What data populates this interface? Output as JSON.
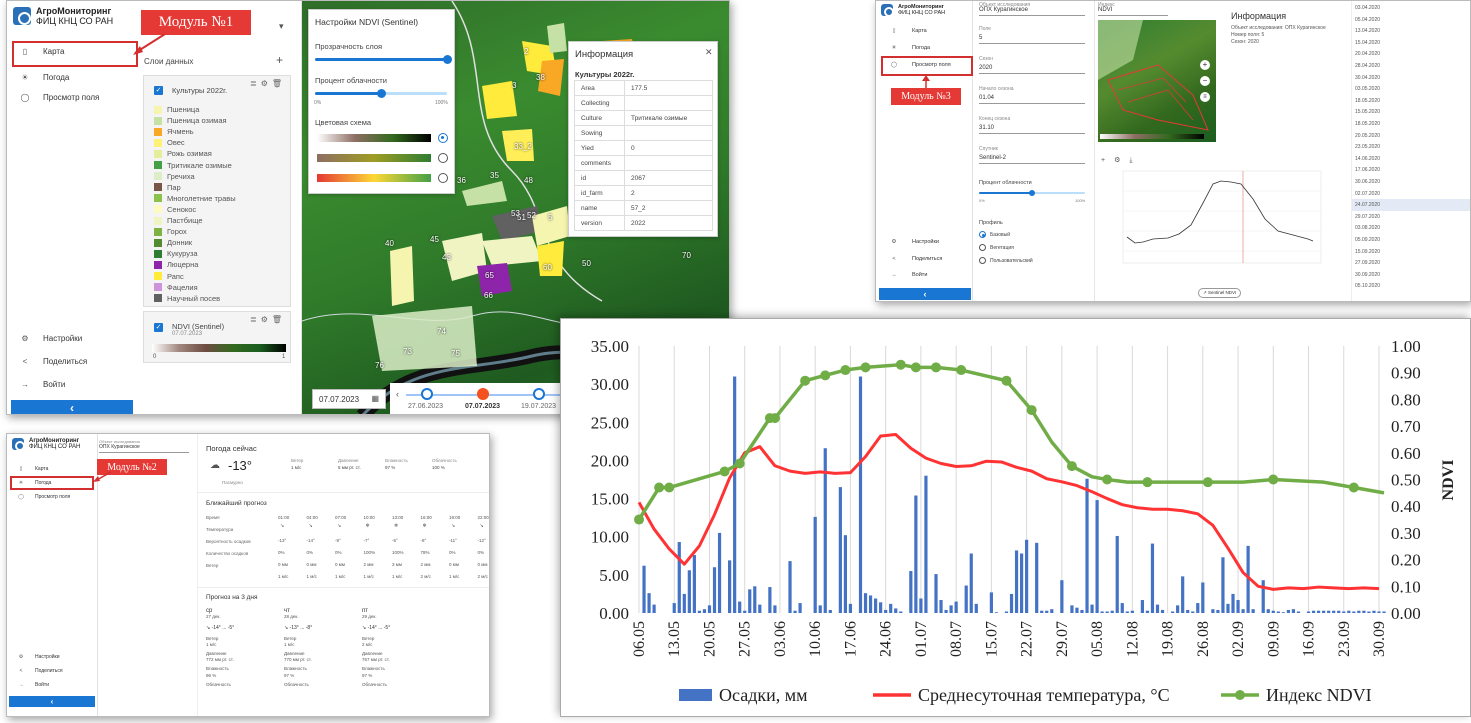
{
  "app": {
    "logo_line1": "АгроМониторинг",
    "logo_line2": "ФИЦ КНЦ СО РАН",
    "nav": [
      "Карта",
      "Погода",
      "Просмотр поля"
    ],
    "bottom_nav": [
      "Настройки",
      "Поделиться",
      "Войти"
    ],
    "collapse_glyph": "‹"
  },
  "module_labels": [
    "Модуль №1",
    "Модуль №2",
    "Модуль №3"
  ],
  "screen1": {
    "layers_title": "Слои данных",
    "add_glyph": "+",
    "layer1_name": "Культуры 2022г.",
    "crops": [
      {
        "name": "Пшеница",
        "color": "#f5f5b0"
      },
      {
        "name": "Пшеница озимая",
        "color": "#c5e1a5"
      },
      {
        "name": "Ячмень",
        "color": "#f9a825"
      },
      {
        "name": "Овес",
        "color": "#fff176"
      },
      {
        "name": "Рожь озимая",
        "color": "#e6ee9c"
      },
      {
        "name": "Тритикале озимые",
        "color": "#43a047"
      },
      {
        "name": "Гречиха",
        "color": "#dcedc8"
      },
      {
        "name": "Пар",
        "color": "#795548"
      },
      {
        "name": "Многолетние травы",
        "color": "#8bc34a"
      },
      {
        "name": "Сенокос",
        "color": "#fff9c4"
      },
      {
        "name": "Пастбище",
        "color": "#f0f4c3"
      },
      {
        "name": "Горох",
        "color": "#7cb342"
      },
      {
        "name": "Донник",
        "color": "#558b2f"
      },
      {
        "name": "Кукуруза",
        "color": "#2e7d32"
      },
      {
        "name": "Люцерна",
        "color": "#8e24aa"
      },
      {
        "name": "Рапс",
        "color": "#ffeb3b"
      },
      {
        "name": "Фацелия",
        "color": "#ce93d8"
      },
      {
        "name": "Научный посев",
        "color": "#616161"
      }
    ],
    "layer2_name": "NDVI (Sentinel)",
    "layer2_date": "07.07.2023",
    "ndvi_min": "0",
    "ndvi_max": "1",
    "ndvi_panel": {
      "title": "Настройки NDVI (Sentinel)",
      "opacity_label": "Прозрачность слоя",
      "opacity_value": 1.0,
      "cloud_label": "Процент облачности",
      "cloud_value": 0.5,
      "cloud_min": "0%",
      "cloud_max": "100%",
      "scheme_label": "Цветовая схема"
    },
    "info_panel": {
      "title": "Информация",
      "close_glyph": "✕",
      "subtitle": "Культуры 2022г.",
      "rows": [
        [
          "Area",
          "177.5"
        ],
        [
          "Collecting",
          ""
        ],
        [
          "Culture",
          "Тритикале озимые"
        ],
        [
          "Sowing",
          ""
        ],
        [
          "Yied",
          "0"
        ],
        [
          "comments",
          ""
        ],
        [
          "id",
          "2067"
        ],
        [
          "id_farm",
          "2"
        ],
        [
          "name",
          "57_2"
        ],
        [
          "version",
          "2022"
        ]
      ]
    },
    "field_numbers": [
      "2",
      "3",
      "38",
      "33_2",
      "35",
      "36",
      "40",
      "45",
      "43",
      "48",
      "5",
      "51",
      "53",
      "52",
      "60",
      "65",
      "66",
      "70",
      "73",
      "74",
      "75",
      "76",
      "50"
    ],
    "date_input": "07.07.2023",
    "timeline": [
      "27.06.2023",
      "07.07.2023",
      "19.07.2023"
    ]
  },
  "screen2": {
    "object_label": "Объект исследования",
    "object_value": "ОПХ Курагинское",
    "now_title": "Погода сейчас",
    "temp_now": "-13°",
    "cond_now": "Пасмурно",
    "now_cols": [
      {
        "label": "Ветер",
        "value": "1 м/с"
      },
      {
        "label": "Давление",
        "value": "5 мм рт. ст."
      },
      {
        "label": "Влажность",
        "value": "97 %"
      },
      {
        "label": "Облачность",
        "value": "100 %"
      }
    ],
    "forecast_title": "Ближайший прогноз",
    "forecast_rows": [
      "Время",
      "Температура",
      "Вероятность осадков",
      "Количество осадков",
      "Ветер"
    ],
    "forecast_times": [
      "01:00",
      "04:00",
      "07:00",
      "10:00",
      "13:00",
      "16:00",
      "19:00",
      "22:00"
    ],
    "forecast_temps": [
      "-13°",
      "-14°",
      "-9°",
      "-7°",
      "-5°",
      "-8°",
      "-11°",
      "-12°"
    ],
    "forecast_prob": [
      "0%",
      "0%",
      "0%",
      "100%",
      "100%",
      "78%",
      "0%",
      "0%"
    ],
    "forecast_amount": [
      "0 мм",
      "0 мм",
      "0 мм",
      "2 мм",
      "3 мм",
      "2 мм",
      "0 мм",
      "0 мм"
    ],
    "forecast_wind": [
      "1 м/с",
      "1 м/с",
      "1 м/с",
      "1 м/с",
      "1 м/с",
      "2 м/с",
      "1 м/с",
      "2 м/с"
    ],
    "three_day_title": "Прогноз на 3 дня",
    "days": [
      {
        "name": "ср",
        "date": "27 дек.",
        "temp": "-14° ... -5°",
        "wind": "1 м/с",
        "pressure": "772 мм рт. ст.",
        "humidity": "96 %"
      },
      {
        "name": "чт",
        "date": "28 дек.",
        "temp": "-13° ... -8°",
        "wind": "1 м/с",
        "pressure": "770 мм рт. ст.",
        "humidity": "97 %"
      },
      {
        "name": "пт",
        "date": "29 дек.",
        "temp": "-14° ... -5°",
        "wind": "2 м/с",
        "pressure": "767 мм рт. ст.",
        "humidity": "97 %"
      }
    ],
    "day_labels": {
      "wind": "Ветер",
      "pressure": "Давление",
      "humidity": "Влажность",
      "cloud": "Облачность"
    }
  },
  "screen3": {
    "fields": [
      {
        "label": "Объект исследования",
        "value": "ОПХ Курагинское"
      },
      {
        "label": "Поле",
        "value": "5"
      },
      {
        "label": "Сезон",
        "value": "2020"
      },
      {
        "label": "Начало сезона",
        "value": "01.04"
      },
      {
        "label": "Конец сезона",
        "value": "31.10"
      },
      {
        "label": "Спутник",
        "value": "Sentinel-2"
      }
    ],
    "index_label": "Индекс",
    "index_value": "NDVI",
    "cloud_label": "Процент облачности",
    "cloud_min": "0%",
    "cloud_max": "100%",
    "profile_label": "Профиль",
    "profiles": [
      "Базовый",
      "Вегетация",
      "Пользовательский"
    ],
    "info_title": "Информация",
    "info_lines": [
      "Объект исследования: ОПХ Курагинское",
      "Номер поля: 5",
      "Сезон: 2020"
    ],
    "mini_legend_button": "Sentinel NDVI",
    "dates": [
      "03.04.2020",
      "05.04.2020",
      "13.04.2020",
      "15.04.2020",
      "20.04.2020",
      "28.04.2020",
      "30.04.2020",
      "03.05.2020",
      "18.05.2020",
      "15.05.2020",
      "18.05.2020",
      "20.05.2020",
      "23.05.2020",
      "14.06.2020",
      "17.06.2020",
      "30.06.2020",
      "02.07.2020",
      "24.07.2020",
      "29.07.2020",
      "03.08.2020",
      "05.09.2020",
      "15.09.2020",
      "27.09.2020",
      "30.09.2020",
      "05.10.2020"
    ]
  },
  "chart_data": {
    "type": "bar",
    "title": "",
    "x_tick_labels": [
      "06.05",
      "13.05",
      "20.05",
      "27.05",
      "03.06",
      "10.06",
      "17.06",
      "24.06",
      "01.07",
      "08.07",
      "15.07",
      "22.07",
      "29.07",
      "05.08",
      "12.08",
      "19.08",
      "26.08",
      "02.09",
      "09.09",
      "16.09",
      "23.09",
      "30.09"
    ],
    "y_left": {
      "label": "",
      "min": 0,
      "max": 35,
      "ticks": [
        "0.00",
        "5.00",
        "10.00",
        "15.00",
        "20.00",
        "25.00",
        "30.00",
        "35.00"
      ]
    },
    "y_right": {
      "label": "NDVI",
      "min": 0,
      "max": 1,
      "ticks": [
        "0.00",
        "0.10",
        "0.20",
        "0.30",
        "0.40",
        "0.50",
        "0.60",
        "0.70",
        "0.80",
        "0.90",
        "1.00"
      ]
    },
    "series": [
      {
        "name": "Осадки, мм",
        "kind": "bar",
        "axis": "left",
        "color": "#4472c4",
        "x": [
          1,
          2,
          3,
          7,
          8,
          9,
          10,
          11,
          12,
          13,
          14,
          15,
          16,
          18,
          19,
          20,
          21,
          22,
          23,
          24,
          26,
          27,
          30,
          31,
          32,
          35,
          36,
          37,
          38,
          40,
          41,
          42,
          44,
          45,
          46,
          47,
          48,
          49,
          50,
          51,
          52,
          54,
          55,
          56,
          57,
          59,
          60,
          61,
          62,
          63,
          65,
          66,
          67,
          70,
          71,
          73,
          74,
          75,
          76,
          77,
          79,
          80,
          81,
          82,
          84,
          86,
          87,
          88,
          89,
          90,
          91,
          92,
          93,
          94,
          95,
          96,
          97,
          98,
          100,
          101,
          102,
          103,
          104,
          106,
          107,
          108,
          109,
          110,
          111,
          112,
          114,
          115,
          116,
          117,
          118,
          119,
          120,
          121,
          122,
          124,
          125,
          126,
          127,
          128,
          129,
          130,
          131,
          133,
          134,
          135,
          136,
          137,
          138,
          139,
          140,
          141,
          142,
          143,
          144,
          145,
          146,
          147,
          148
        ],
        "y": [
          6.2,
          2.6,
          1.1,
          1.3,
          9.3,
          2.5,
          5.6,
          7.6,
          0.3,
          0.5,
          1.0,
          6.0,
          10.5,
          6.9,
          31.0,
          1.5,
          0.3,
          3.1,
          3.5,
          1.1,
          3.4,
          1.0,
          6.8,
          0.3,
          1.3,
          12.6,
          1.0,
          21.6,
          0.4,
          16.5,
          10.2,
          1.2,
          31.0,
          2.6,
          2.3,
          1.9,
          1.4,
          0.4,
          1.2,
          0.6,
          0.2,
          5.5,
          15.4,
          1.9,
          18.0,
          5.1,
          1.7,
          0.4,
          1.0,
          1.5,
          3.6,
          7.8,
          1.2,
          2.7,
          0.1,
          0.2,
          2.5,
          8.2,
          7.8,
          9.6,
          9.2,
          0.3,
          0.3,
          0.5,
          4.3,
          1.0,
          0.7,
          0.4,
          17.6,
          1.1,
          14.8,
          0.2,
          0.2,
          0.3,
          10.1,
          1.3,
          0.2,
          0.3,
          1.7,
          0.3,
          9.1,
          1.1,
          0.4,
          0.2,
          1.0,
          4.8,
          0.4,
          0.2,
          1.3,
          4.0,
          0.5,
          0.4,
          7.3,
          1.2,
          2.5,
          1.7,
          0.5,
          8.8,
          0.5,
          4.3,
          0.5,
          0.3,
          0.2,
          0.1,
          0.4,
          0.5,
          0.2,
          0.2,
          0.3,
          0.3,
          0.3,
          0.3,
          0.3,
          0.3,
          0.2,
          0.3,
          0.2,
          0.3,
          0.3,
          0.2,
          0.3,
          0.2,
          0.2
        ]
      },
      {
        "name": "Среднесуточная температура, °С",
        "kind": "line",
        "axis": "left",
        "color": "#ff3333",
        "x": [
          0,
          3,
          6,
          9,
          12,
          15,
          18,
          21,
          24,
          27,
          30,
          33,
          36,
          39,
          42,
          45,
          48,
          51,
          54,
          57,
          60,
          63,
          66,
          69,
          72,
          75,
          78,
          81,
          84,
          87,
          90,
          93,
          96,
          99,
          102,
          105,
          108,
          111,
          114,
          117,
          120,
          123,
          126,
          129,
          132,
          135,
          138,
          141,
          144,
          147
        ],
        "y": [
          14.5,
          11.0,
          8.4,
          6.4,
          8.8,
          12.9,
          17.7,
          21.0,
          21.8,
          19.3,
          18.6,
          18.3,
          18.5,
          18.3,
          18.4,
          20.5,
          23.2,
          23.4,
          21.6,
          20.3,
          19.6,
          19.2,
          19.3,
          19.9,
          19.8,
          19.1,
          18.6,
          17.6,
          17.2,
          16.7,
          15.9,
          15.0,
          14.2,
          13.8,
          13.6,
          13.6,
          13.4,
          13.0,
          11.5,
          8.5,
          5.3,
          3.5,
          3.1,
          3.3,
          3.2,
          3.4,
          3.3,
          3.2,
          3.3,
          3.2
        ]
      },
      {
        "name": "Индекс NDVI",
        "kind": "line",
        "axis": "right",
        "color": "#70ad47",
        "x": [
          0,
          4,
          6,
          17,
          20,
          26,
          27,
          33,
          37,
          41,
          45,
          52,
          55,
          59,
          64,
          73,
          78,
          82,
          86,
          90,
          93,
          97,
          101,
          107,
          113,
          120,
          126,
          136,
          142,
          148
        ],
        "y": [
          0.35,
          0.47,
          0.47,
          0.53,
          0.56,
          0.73,
          0.73,
          0.87,
          0.89,
          0.91,
          0.92,
          0.93,
          0.92,
          0.92,
          0.91,
          0.87,
          0.76,
          0.64,
          0.55,
          0.51,
          0.5,
          0.49,
          0.49,
          0.49,
          0.49,
          0.49,
          0.5,
          0.49,
          0.47,
          0.45
        ]
      }
    ],
    "legend_position": "bottom",
    "grid": true
  }
}
